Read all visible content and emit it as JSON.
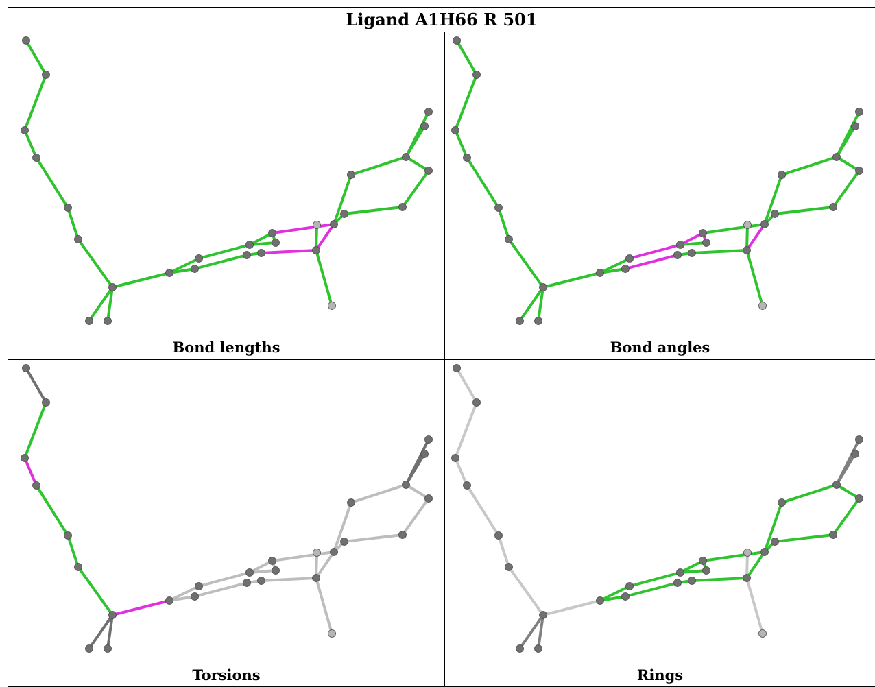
{
  "title": "Ligand A1H66 R 501",
  "panels": [
    {
      "caption": "Bond lengths"
    },
    {
      "caption": "Bond angles"
    },
    {
      "caption": "Torsions"
    },
    {
      "caption": "Rings"
    }
  ],
  "colors": {
    "good": "#2fc42f",
    "outlier": "#e030e0",
    "neutral": "#a0a0a0",
    "atom": "#707070"
  }
}
